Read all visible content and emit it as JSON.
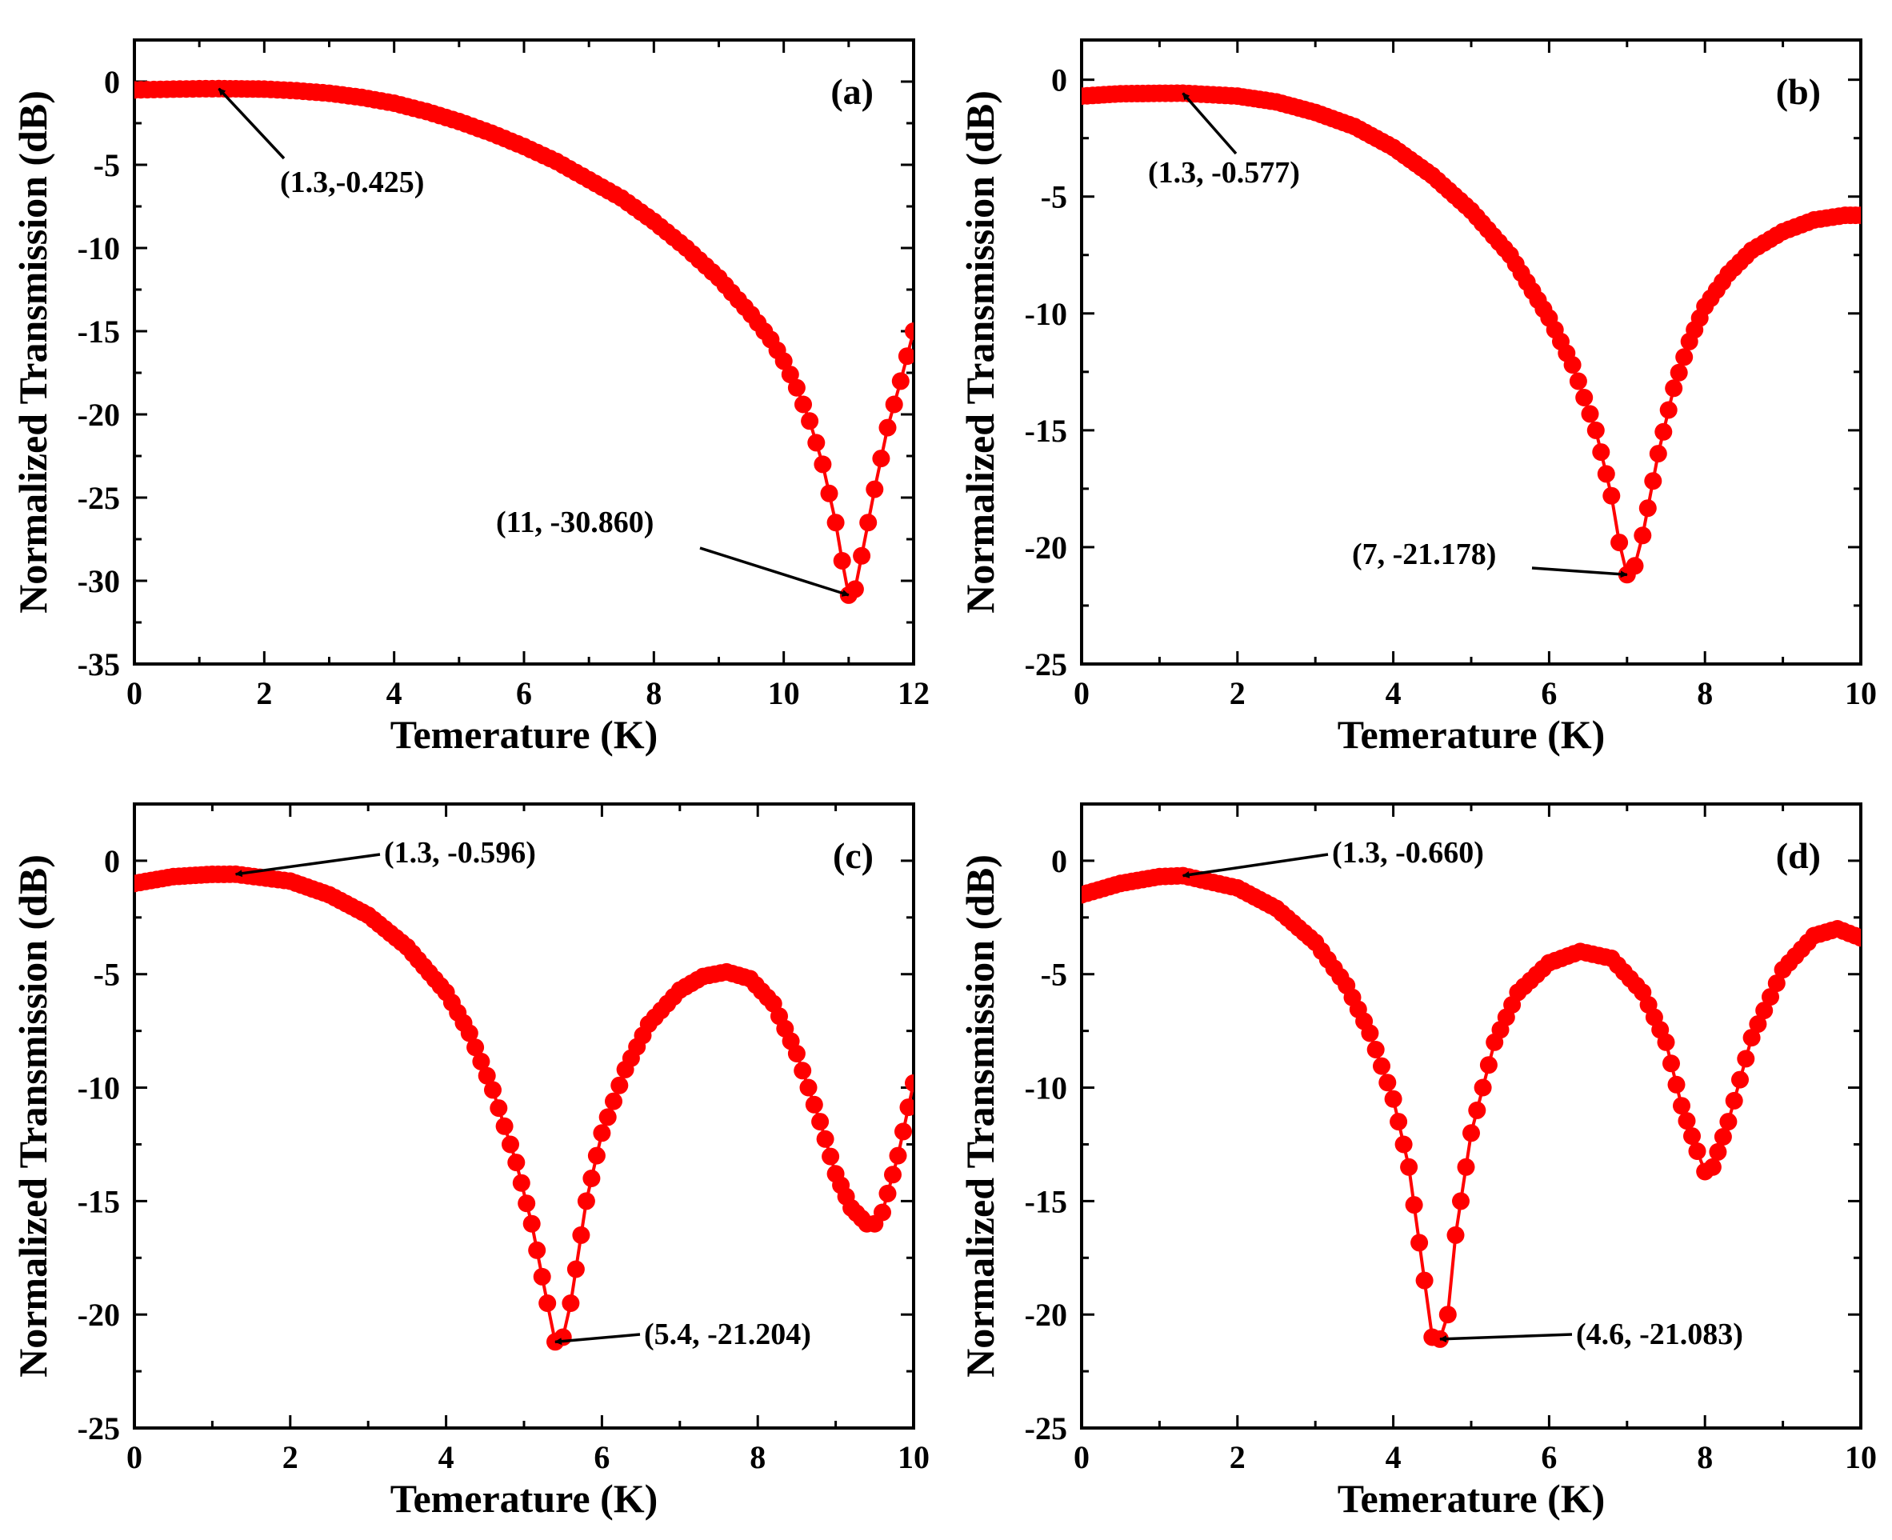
{
  "chart_data": [
    {
      "type": "line",
      "panel_label": "(a)",
      "xlabel": "Temerature (K)",
      "ylabel": "Normalized Transmission (dB)",
      "xlim": [
        0,
        12
      ],
      "ylim": [
        -35,
        2.5
      ],
      "xticks": [
        0,
        2,
        4,
        6,
        8,
        10,
        12
      ],
      "yticks": [
        0,
        -5,
        -10,
        -15,
        -20,
        -25,
        -30,
        -35
      ],
      "series": [
        {
          "name": "transmission",
          "color": "#ff0000",
          "x": [
            0,
            0.5,
            1,
            1.3,
            2,
            2.5,
            3,
            3.5,
            4,
            4.5,
            5,
            5.5,
            6,
            6.5,
            7,
            7.5,
            8,
            8.5,
            9,
            9.5,
            9.8,
            10,
            10.2,
            10.4,
            10.6,
            10.8,
            10.9,
            11,
            11.1,
            11.2,
            11.4,
            11.6,
            11.8,
            12
          ],
          "y": [
            -0.5,
            -0.46,
            -0.43,
            -0.425,
            -0.45,
            -0.55,
            -0.7,
            -0.95,
            -1.3,
            -1.8,
            -2.4,
            -3.1,
            -3.9,
            -4.8,
            -5.9,
            -7.0,
            -8.4,
            -10.0,
            -11.8,
            -14.0,
            -15.5,
            -16.8,
            -18.4,
            -20.4,
            -23.0,
            -26.5,
            -28.8,
            -30.86,
            -30.5,
            -28.5,
            -24.5,
            -20.8,
            -18.0,
            -15.0
          ]
        }
      ],
      "annotations": [
        {
          "text": "(1.3,-0.425)",
          "x": 1.3,
          "y": -0.425
        },
        {
          "text": "(11, -30.860)",
          "x": 11,
          "y": -30.86
        }
      ]
    },
    {
      "type": "line",
      "panel_label": "(b)",
      "xlabel": "Temerature (K)",
      "ylabel": "Normalized Transmission (dB)",
      "xlim": [
        0,
        10
      ],
      "ylim": [
        -25,
        1.7
      ],
      "xticks": [
        0,
        2,
        4,
        6,
        8,
        10
      ],
      "yticks": [
        0,
        -5,
        -10,
        -15,
        -20,
        -25
      ],
      "series": [
        {
          "name": "transmission",
          "color": "#ff0000",
          "x": [
            0,
            0.5,
            1,
            1.3,
            2,
            2.5,
            3,
            3.5,
            4,
            4.5,
            5,
            5.5,
            6,
            6.3,
            6.6,
            6.8,
            6.9,
            7,
            7.1,
            7.2,
            7.4,
            7.6,
            7.8,
            8,
            8.3,
            8.6,
            9,
            9.4,
            9.8,
            10
          ],
          "y": [
            -0.7,
            -0.6,
            -0.58,
            -0.577,
            -0.7,
            -0.95,
            -1.4,
            -2.0,
            -2.9,
            -4.1,
            -5.6,
            -7.5,
            -10.2,
            -12.2,
            -15.0,
            -17.8,
            -19.8,
            -21.178,
            -20.8,
            -19.5,
            -16.0,
            -13.2,
            -11.2,
            -9.7,
            -8.3,
            -7.3,
            -6.5,
            -6.0,
            -5.8,
            -5.8
          ]
        }
      ],
      "annotations": [
        {
          "text": "(1.3, -0.577)",
          "x": 1.3,
          "y": -0.577
        },
        {
          "text": "(7, -21.178)",
          "x": 7,
          "y": -21.178
        }
      ]
    },
    {
      "type": "line",
      "panel_label": "(c)",
      "xlabel": "Temerature (K)",
      "ylabel": "Normalized Transmission (dB)",
      "xlim": [
        0,
        10
      ],
      "ylim": [
        -25,
        2.5
      ],
      "xticks": [
        0,
        2,
        4,
        6,
        8,
        10
      ],
      "yticks": [
        0,
        -5,
        -10,
        -15,
        -20,
        -25
      ],
      "series": [
        {
          "name": "transmission",
          "color": "#ff0000",
          "x": [
            0,
            0.5,
            1,
            1.3,
            2,
            2.5,
            3,
            3.5,
            4,
            4.3,
            4.6,
            4.9,
            5.1,
            5.3,
            5.4,
            5.5,
            5.6,
            5.8,
            6.0,
            6.3,
            6.6,
            7.0,
            7.3,
            7.6,
            7.9,
            8.2,
            8.5,
            8.8,
            9.0,
            9.2,
            9.4,
            9.5,
            9.6,
            9.8,
            10
          ],
          "y": [
            -1.0,
            -0.7,
            -0.6,
            -0.596,
            -0.9,
            -1.5,
            -2.4,
            -3.8,
            -5.8,
            -7.6,
            -10.1,
            -13.3,
            -16.0,
            -19.5,
            -21.204,
            -21.0,
            -19.5,
            -15.0,
            -12.0,
            -9.2,
            -7.2,
            -5.7,
            -5.1,
            -4.9,
            -5.2,
            -6.3,
            -8.5,
            -11.5,
            -13.8,
            -15.3,
            -16.0,
            -16.0,
            -15.5,
            -13.0,
            -9.8
          ]
        }
      ],
      "annotations": [
        {
          "text": "(1.3, -0.596)",
          "x": 1.3,
          "y": -0.596
        },
        {
          "text": "(5.4, -21.204)",
          "x": 5.4,
          "y": -21.204
        }
      ]
    },
    {
      "type": "line",
      "panel_label": "(d)",
      "xlabel": "Temerature (K)",
      "ylabel": "Normalized Transmission (dB)",
      "xlim": [
        0,
        10
      ],
      "ylim": [
        -25,
        2.5
      ],
      "xticks": [
        0,
        2,
        4,
        6,
        8,
        10
      ],
      "yticks": [
        0,
        -5,
        -10,
        -15,
        -20,
        -25
      ],
      "series": [
        {
          "name": "transmission",
          "color": "#ff0000",
          "x": [
            0,
            0.5,
            1,
            1.3,
            2,
            2.5,
            3,
            3.4,
            3.7,
            4.0,
            4.2,
            4.4,
            4.5,
            4.6,
            4.7,
            4.8,
            5.0,
            5.3,
            5.6,
            6.0,
            6.4,
            6.8,
            7.2,
            7.5,
            7.7,
            7.9,
            8.0,
            8.1,
            8.3,
            8.6,
            9.0,
            9.4,
            9.7,
            10
          ],
          "y": [
            -1.5,
            -1.0,
            -0.7,
            -0.66,
            -1.2,
            -2.1,
            -3.6,
            -5.5,
            -7.6,
            -10.5,
            -13.5,
            -18.5,
            -21.0,
            -21.083,
            -20.0,
            -16.5,
            -12.0,
            -8.0,
            -5.8,
            -4.5,
            -4.0,
            -4.3,
            -5.8,
            -8.0,
            -10.8,
            -12.8,
            -13.7,
            -13.5,
            -11.5,
            -7.8,
            -4.8,
            -3.3,
            -3.0,
            -3.4
          ]
        }
      ],
      "annotations": [
        {
          "text": "(1.3, -0.660)",
          "x": 1.3,
          "y": -0.66
        },
        {
          "text": "(4.6, -21.083)",
          "x": 4.6,
          "y": -21.083
        }
      ]
    }
  ]
}
